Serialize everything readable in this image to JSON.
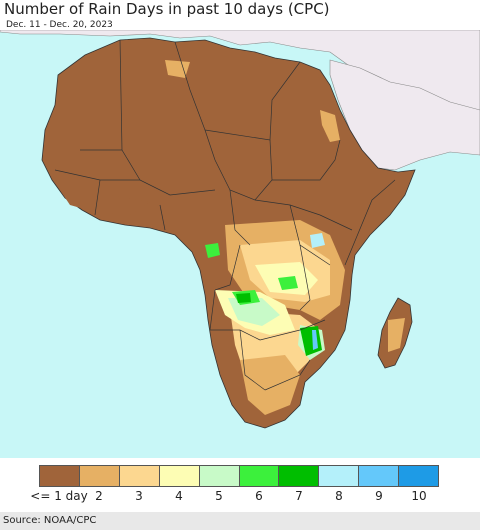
{
  "title": "Number of Rain Days in past 10 days (CPC)",
  "date_range": "Dec. 11 - Dec. 20, 2023",
  "source": "Source: NOAA/CPC",
  "colors": {
    "ocean": "#c8f7f7",
    "outside_land": "#efe9ef",
    "dry_land": "#a0643a",
    "border": "#333333"
  },
  "legend": {
    "items": [
      {
        "label": "<= 1 day",
        "color": "#a0643a"
      },
      {
        "label": "2",
        "color": "#e6b064"
      },
      {
        "label": "3",
        "color": "#fcd790"
      },
      {
        "label": "4",
        "color": "#fdfdb4"
      },
      {
        "label": "5",
        "color": "#c8fac8"
      },
      {
        "label": "6",
        "color": "#3cf03c"
      },
      {
        "label": "7",
        "color": "#00be00"
      },
      {
        "label": "8",
        "color": "#b4f0fa"
      },
      {
        "label": "9",
        "color": "#64c8fa"
      },
      {
        "label": "10",
        "color": "#1e9be6"
      }
    ]
  }
}
